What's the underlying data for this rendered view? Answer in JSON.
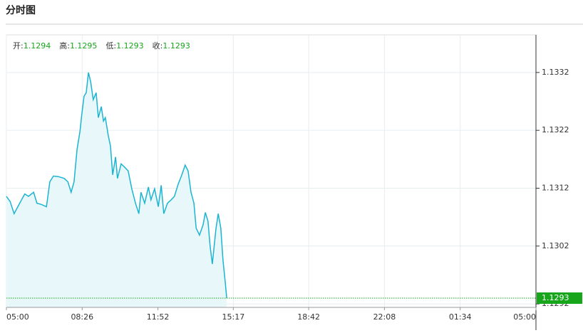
{
  "header": {
    "title": "分时图"
  },
  "chart_data": {
    "type": "line",
    "stats": [
      {
        "label": "开:",
        "value": 1.1294
      },
      {
        "label": "高:",
        "value": 1.1295
      },
      {
        "label": "低:",
        "value": 1.1293
      },
      {
        "label": "收:",
        "value": 1.1293
      }
    ],
    "x": [
      0,
      10,
      21,
      31,
      41,
      50,
      60,
      74,
      83,
      95,
      109,
      118,
      128,
      141,
      157,
      167,
      176,
      184,
      192,
      200,
      205,
      211,
      217,
      223,
      229,
      236,
      244,
      250,
      258,
      264,
      269,
      277,
      283,
      289,
      297,
      302,
      312,
      322,
      331,
      341,
      351,
      360,
      366,
      376,
      386,
      393,
      403,
      413,
      421,
      428,
      438,
      448,
      457,
      467,
      477,
      486,
      494,
      502,
      510,
      516,
      525,
      535,
      541,
      548,
      554,
      560,
      564,
      570,
      576,
      583,
      589,
      595,
      599
    ],
    "series": [
      {
        "color": "#1bb4d2",
        "fill": "#e8f8fa",
        "values": [
          1.13106,
          1.13097,
          1.13076,
          1.13088,
          1.131,
          1.1311,
          1.13106,
          1.13113,
          1.13094,
          1.13092,
          1.13088,
          1.13131,
          1.13141,
          1.1314,
          1.13137,
          1.13131,
          1.13113,
          1.13131,
          1.13187,
          1.13218,
          1.13248,
          1.13279,
          1.13285,
          1.1332,
          1.13304,
          1.13273,
          1.13285,
          1.13242,
          1.13261,
          1.13236,
          1.13242,
          1.13211,
          1.13193,
          1.13143,
          1.13174,
          1.13137,
          1.13162,
          1.13156,
          1.1315,
          1.13119,
          1.13094,
          1.13076,
          1.13113,
          1.13094,
          1.13122,
          1.131,
          1.13119,
          1.13088,
          1.13125,
          1.13076,
          1.13094,
          1.131,
          1.13106,
          1.13127,
          1.13143,
          1.1316,
          1.1315,
          1.13113,
          1.13094,
          1.13051,
          1.13039,
          1.13057,
          1.13078,
          1.13063,
          1.1302,
          1.12989,
          1.13014,
          1.13051,
          1.13076,
          1.13051,
          1.12995,
          1.12958,
          1.1293
        ]
      }
    ],
    "current_price": 1.1293,
    "current_color": "#16a51b",
    "xlim": [
      0,
      1440
    ],
    "xticks": [
      {
        "value": 0,
        "label": "05:00"
      },
      {
        "value": 206,
        "label": "08:26"
      },
      {
        "value": 412,
        "label": "11:52"
      },
      {
        "value": 617,
        "label": "15:17"
      },
      {
        "value": 822,
        "label": "18:42"
      },
      {
        "value": 1028,
        "label": "22:08"
      },
      {
        "value": 1234,
        "label": "01:34"
      },
      {
        "value": 1440,
        "label": "05:00"
      }
    ],
    "ylim": [
      1.12914,
      1.13385
    ],
    "yticks": [
      1.1292,
      1.1302,
      1.1312,
      1.1322,
      1.1332
    ],
    "grid": true
  }
}
